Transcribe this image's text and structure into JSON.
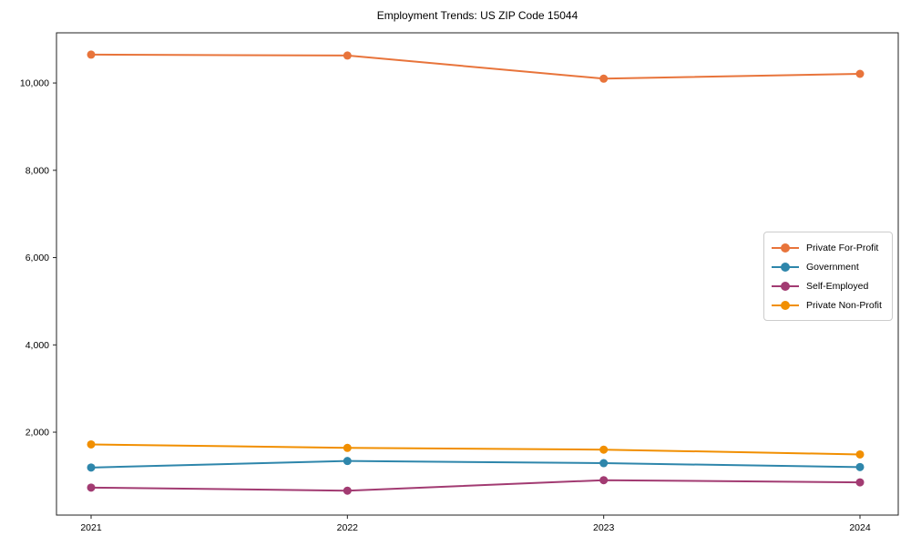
{
  "chart_data": {
    "type": "line",
    "title": "Employment Trends: US ZIP Code 15044",
    "xlabel": "",
    "ylabel": "",
    "x": [
      2021,
      2022,
      2023,
      2024
    ],
    "series": [
      {
        "name": "Private For-Profit",
        "color": "#E8743B",
        "values": [
          10650,
          10630,
          10100,
          10210
        ]
      },
      {
        "name": "Government",
        "color": "#2E86AB",
        "values": [
          1190,
          1340,
          1290,
          1200
        ]
      },
      {
        "name": "Self-Employed",
        "color": "#A23B72",
        "values": [
          730,
          660,
          900,
          850
        ]
      },
      {
        "name": "Private Non-Profit",
        "color": "#F18F01",
        "values": [
          1720,
          1640,
          1600,
          1490
        ]
      }
    ],
    "yticks": [
      2000,
      4000,
      6000,
      8000,
      10000
    ],
    "ytick_labels": [
      "2,000",
      "4,000",
      "6,000",
      "8,000",
      "10,000"
    ],
    "xtick_labels": [
      "2021",
      "2022",
      "2023",
      "2024"
    ],
    "ylim": [
      100,
      11150
    ],
    "grid": false,
    "legend_position": "center-right",
    "spine_color": "#222222",
    "tick_label_color": "#000000",
    "background_color": "#ffffff"
  }
}
